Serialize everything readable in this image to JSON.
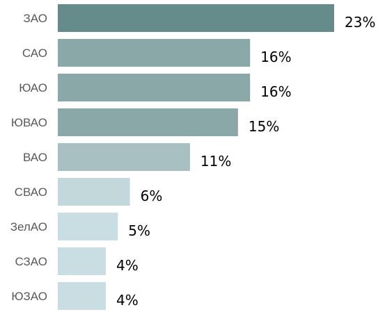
{
  "chart_data": {
    "type": "bar",
    "orientation": "horizontal",
    "categories": [
      "ЗАО",
      "САО",
      "ЮАО",
      "ЮВАО",
      "ВАО",
      "СВАО",
      "ЗелАО",
      "СЗАО",
      "ЮЗАО"
    ],
    "values": [
      23,
      16,
      16,
      15,
      11,
      6,
      5,
      4,
      4
    ],
    "value_labels": [
      "23%",
      "16%",
      "16%",
      "15%",
      "11%",
      "6%",
      "5%",
      "4%",
      "4%"
    ],
    "unit": "%",
    "colors": [
      "#658b8a",
      "#89a8a7",
      "#89a8a7",
      "#89a8a7",
      "#a8c0c1",
      "#c2d8db",
      "#c9dee2",
      "#c9dee2",
      "#c9dee2"
    ],
    "xlim": [
      0,
      23
    ],
    "grid": false,
    "axes_visible": false
  }
}
